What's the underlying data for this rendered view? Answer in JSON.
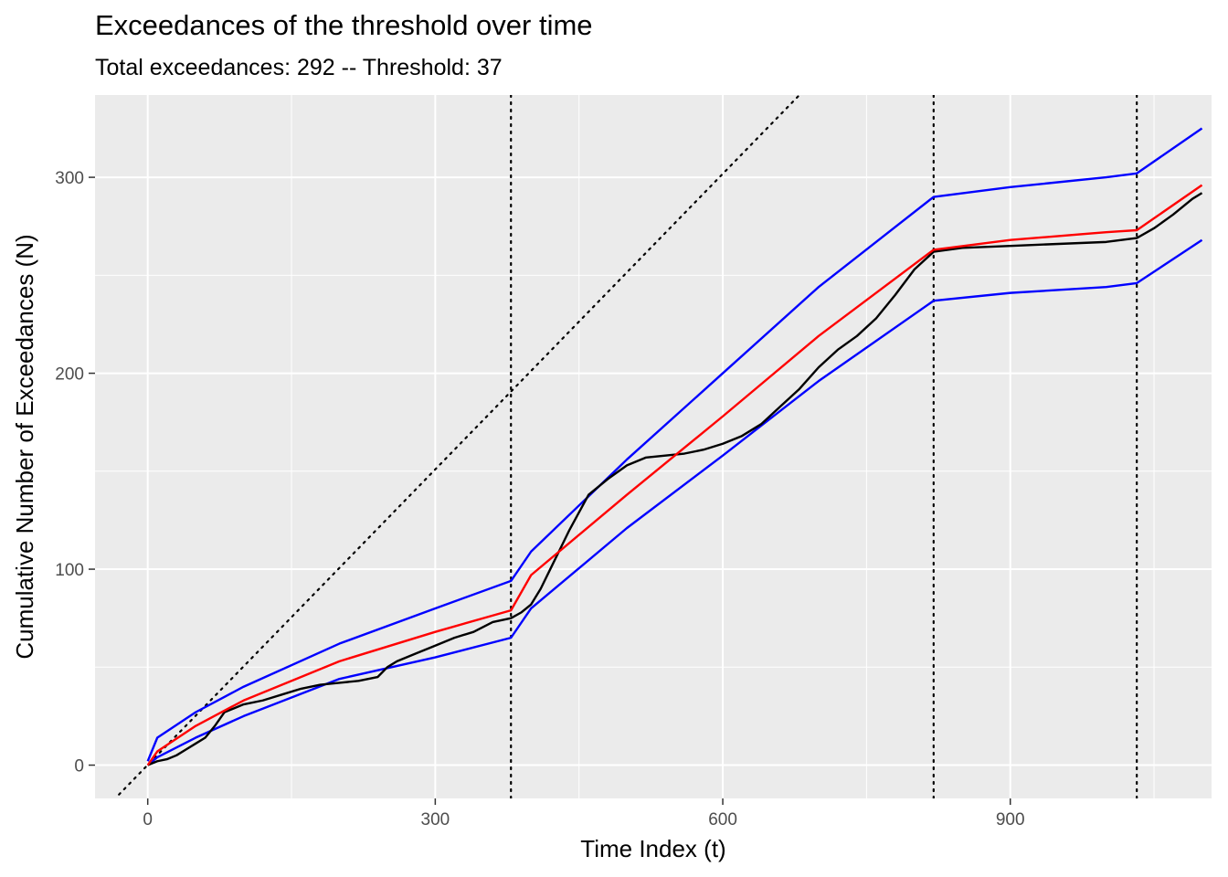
{
  "chart_data": {
    "type": "line",
    "title": "Exceedances of the threshold over time",
    "subtitle": "Total exceedances: 292  -- Threshold: 37",
    "xlabel": "Time Index (t)",
    "ylabel": "Cumulative Number of Exceedances (N)",
    "xlim": [
      -55,
      1110
    ],
    "ylim": [
      -17,
      342
    ],
    "x_ticks": [
      0,
      300,
      600,
      900
    ],
    "x_tick_labels": [
      "0",
      "300",
      "600",
      "900"
    ],
    "y_ticks": [
      0,
      100,
      200,
      300
    ],
    "y_tick_labels": [
      "0",
      "100",
      "200",
      "300"
    ],
    "grid": true,
    "legend": "none",
    "colors": {
      "panel": "#ebebeb",
      "grid": "#ffffff",
      "observed": "#000000",
      "expected": "#ff0000",
      "bounds": "#0000ff",
      "reference": "#000000"
    },
    "changepoints_x": [
      379,
      820,
      1032
    ],
    "reference_line": {
      "x": [
        -30,
        680
      ],
      "y": [
        -15,
        342
      ]
    },
    "series": [
      {
        "role": "observed",
        "x": [
          0,
          10,
          20,
          30,
          40,
          50,
          60,
          70,
          80,
          90,
          100,
          120,
          140,
          160,
          180,
          200,
          220,
          240,
          250,
          260,
          280,
          300,
          320,
          340,
          360,
          379,
          390,
          400,
          410,
          420,
          430,
          440,
          460,
          480,
          500,
          520,
          540,
          560,
          580,
          600,
          620,
          640,
          660,
          680,
          700,
          720,
          740,
          760,
          780,
          800,
          820,
          850,
          900,
          950,
          1000,
          1032,
          1050,
          1070,
          1090,
          1100
        ],
        "y": [
          0,
          2,
          3,
          5,
          8,
          11,
          14,
          20,
          27,
          29,
          31,
          33,
          36,
          39,
          41,
          42,
          43,
          45,
          50,
          53,
          57,
          61,
          65,
          68,
          73,
          75,
          78,
          82,
          90,
          100,
          110,
          120,
          138,
          146,
          153,
          157,
          158,
          159,
          161,
          164,
          168,
          174,
          183,
          192,
          203,
          212,
          219,
          228,
          240,
          253,
          262,
          264,
          265,
          266,
          267,
          269,
          274,
          281,
          289,
          292
        ]
      },
      {
        "role": "expected",
        "x": [
          0,
          10,
          50,
          100,
          200,
          300,
          379,
          400,
          500,
          600,
          700,
          820,
          900,
          1000,
          1032,
          1100
        ],
        "y": [
          0,
          7,
          20,
          33,
          53,
          68,
          79,
          97,
          138,
          178,
          219,
          263,
          268,
          272,
          273,
          296
        ]
      },
      {
        "role": "upper-bound",
        "x": [
          0,
          10,
          50,
          100,
          200,
          300,
          379,
          400,
          500,
          600,
          700,
          820,
          900,
          1000,
          1032,
          1100
        ],
        "y": [
          2,
          14,
          27,
          40,
          62,
          80,
          94,
          109,
          156,
          200,
          244,
          290,
          295,
          300,
          302,
          325
        ]
      },
      {
        "role": "lower-bound",
        "x": [
          0,
          10,
          50,
          100,
          200,
          300,
          379,
          400,
          500,
          600,
          700,
          820,
          900,
          1000,
          1032,
          1100
        ],
        "y": [
          0,
          4,
          14,
          25,
          44,
          55,
          65,
          80,
          121,
          158,
          196,
          237,
          241,
          244,
          246,
          268
        ]
      }
    ]
  }
}
